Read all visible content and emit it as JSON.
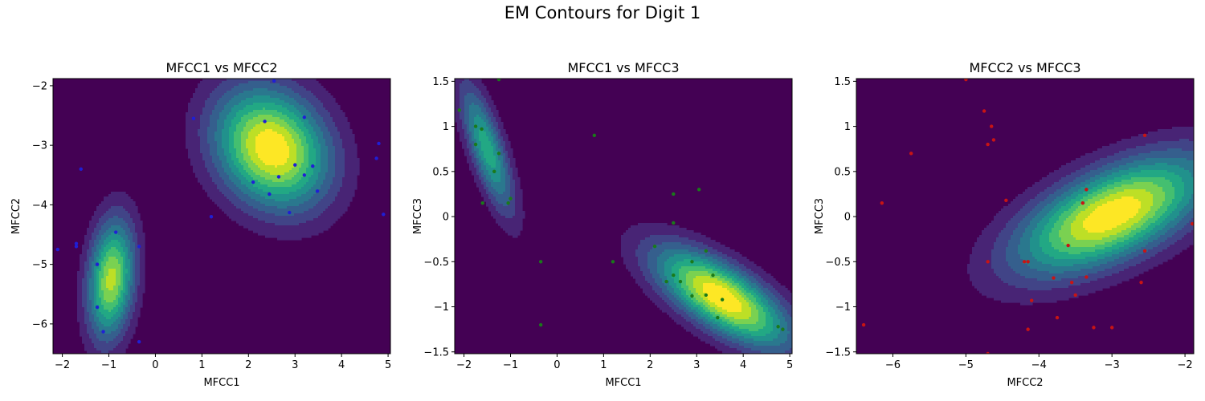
{
  "figure": {
    "suptitle": "EM Contours for Digit 1"
  },
  "colors": {
    "background": "#440154",
    "contour_levels": [
      "#440154",
      "#482475",
      "#414487",
      "#355f8d",
      "#2a788e",
      "#21918c",
      "#22a884",
      "#44bf70",
      "#7ad151",
      "#bddf26",
      "#fde725"
    ],
    "points_panel_1": "#1f1fd6",
    "points_panel_2": "#1a7a1a",
    "points_panel_3": "#c81414"
  },
  "chart_data": [
    {
      "type": "contour",
      "title": "MFCC1 vs MFCC2",
      "xlabel": "MFCC1",
      "ylabel": "MFCC2",
      "xlim": [
        -2.2,
        5.05
      ],
      "ylim": [
        -6.5,
        -1.88
      ],
      "xticks": [
        -2,
        -1,
        0,
        1,
        2,
        3,
        4,
        5
      ],
      "yticks": [
        -6,
        -5,
        -4,
        -3,
        -2
      ],
      "grid": false,
      "components": [
        {
          "mean": [
            2.5,
            -3.05
          ],
          "sd": [
            0.85,
            0.7
          ],
          "rho": -0.2,
          "weight": 1.0
        },
        {
          "mean": [
            -0.95,
            -5.25
          ],
          "sd": [
            0.35,
            0.7
          ],
          "rho": 0.2,
          "weight": 0.85
        }
      ],
      "points": [
        [
          2.55,
          -1.92
        ],
        [
          0.82,
          -2.55
        ],
        [
          2.35,
          -2.6
        ],
        [
          3.2,
          -2.53
        ],
        [
          4.8,
          -2.97
        ],
        [
          4.75,
          -3.22
        ],
        [
          3.0,
          -3.33
        ],
        [
          3.38,
          -3.35
        ],
        [
          3.2,
          -3.5
        ],
        [
          2.65,
          -3.53
        ],
        [
          2.1,
          -3.62
        ],
        [
          3.48,
          -3.77
        ],
        [
          2.45,
          -3.82
        ],
        [
          2.88,
          -4.13
        ],
        [
          1.2,
          -4.2
        ],
        [
          4.9,
          -4.16
        ],
        [
          -1.6,
          -3.4
        ],
        [
          -2.1,
          -4.75
        ],
        [
          -1.7,
          -4.65
        ],
        [
          -1.7,
          -4.7
        ],
        [
          -0.85,
          -4.46
        ],
        [
          -0.35,
          -4.7
        ],
        [
          -1.25,
          -5.0
        ],
        [
          -1.25,
          -5.72
        ],
        [
          -1.12,
          -6.13
        ],
        [
          -0.35,
          -6.3
        ]
      ]
    },
    {
      "type": "contour",
      "title": "MFCC1 vs MFCC3",
      "xlabel": "MFCC1",
      "ylabel": "MFCC3",
      "xlim": [
        -2.2,
        5.05
      ],
      "ylim": [
        -1.52,
        1.53
      ],
      "xticks": [
        -2,
        -1,
        0,
        1,
        2,
        3,
        4,
        5
      ],
      "yticks": [
        -1.5,
        -1.0,
        -0.5,
        0.0,
        0.5,
        1.0,
        1.5
      ],
      "grid": false,
      "components": [
        {
          "mean": [
            3.55,
            -0.9
          ],
          "sd": [
            1.0,
            0.38
          ],
          "rho": -0.7,
          "weight": 1.0
        },
        {
          "mean": [
            -1.5,
            0.75
          ],
          "sd": [
            0.4,
            0.5
          ],
          "rho": -0.75,
          "weight": 0.6
        }
      ],
      "points": [
        [
          -1.25,
          1.52
        ],
        [
          -2.1,
          1.18
        ],
        [
          -1.75,
          1.0
        ],
        [
          -1.62,
          0.97
        ],
        [
          -1.75,
          0.8
        ],
        [
          -1.25,
          0.7
        ],
        [
          -1.35,
          0.5
        ],
        [
          -1.05,
          0.15
        ],
        [
          -1.6,
          0.15
        ],
        [
          -1.0,
          0.2
        ],
        [
          0.8,
          0.9
        ],
        [
          3.05,
          0.3
        ],
        [
          2.5,
          0.25
        ],
        [
          2.5,
          -0.07
        ],
        [
          -0.35,
          -0.5
        ],
        [
          1.2,
          -0.5
        ],
        [
          2.1,
          -0.33
        ],
        [
          2.9,
          -0.5
        ],
        [
          3.2,
          -0.38
        ],
        [
          2.5,
          -0.65
        ],
        [
          2.35,
          -0.72
        ],
        [
          2.65,
          -0.72
        ],
        [
          3.35,
          -0.65
        ],
        [
          2.9,
          -0.88
        ],
        [
          3.2,
          -0.87
        ],
        [
          3.55,
          -0.92
        ],
        [
          3.45,
          -1.12
        ],
        [
          4.75,
          -1.22
        ],
        [
          4.85,
          -1.25
        ],
        [
          -0.35,
          -1.2
        ]
      ]
    },
    {
      "type": "contour",
      "title": "MFCC2 vs MFCC3",
      "xlabel": "MFCC2",
      "ylabel": "MFCC3",
      "xlim": [
        -6.5,
        -1.88
      ],
      "ylim": [
        -1.52,
        1.53
      ],
      "xticks": [
        -6,
        -5,
        -4,
        -3,
        -2
      ],
      "yticks": [
        -1.5,
        -1.0,
        -0.5,
        0.0,
        0.5,
        1.0,
        1.5
      ],
      "grid": false,
      "components": [
        {
          "mean": [
            -3.0,
            0.02
          ],
          "sd": [
            0.9,
            0.45
          ],
          "rho": 0.6,
          "weight": 1.0
        }
      ],
      "points": [
        [
          -5.0,
          1.52
        ],
        [
          -4.75,
          1.17
        ],
        [
          -4.65,
          1.0
        ],
        [
          -4.62,
          0.85
        ],
        [
          -4.7,
          0.8
        ],
        [
          -5.75,
          0.7
        ],
        [
          -2.55,
          0.9
        ],
        [
          -6.15,
          0.15
        ],
        [
          -4.45,
          0.18
        ],
        [
          -3.35,
          0.3
        ],
        [
          -3.4,
          0.15
        ],
        [
          -1.9,
          -0.08
        ],
        [
          -3.6,
          -0.32
        ],
        [
          -2.55,
          -0.38
        ],
        [
          -4.7,
          -0.5
        ],
        [
          -4.2,
          -0.5
        ],
        [
          -4.15,
          -0.5
        ],
        [
          -3.35,
          -0.67
        ],
        [
          -3.8,
          -0.68
        ],
        [
          -3.55,
          -0.73
        ],
        [
          -2.6,
          -0.73
        ],
        [
          -3.5,
          -0.87
        ],
        [
          -4.1,
          -0.93
        ],
        [
          -3.75,
          -1.12
        ],
        [
          -6.4,
          -1.2
        ],
        [
          -4.15,
          -1.25
        ],
        [
          -3.25,
          -1.23
        ],
        [
          -3.0,
          -1.23
        ],
        [
          -4.7,
          -1.52
        ]
      ]
    }
  ]
}
